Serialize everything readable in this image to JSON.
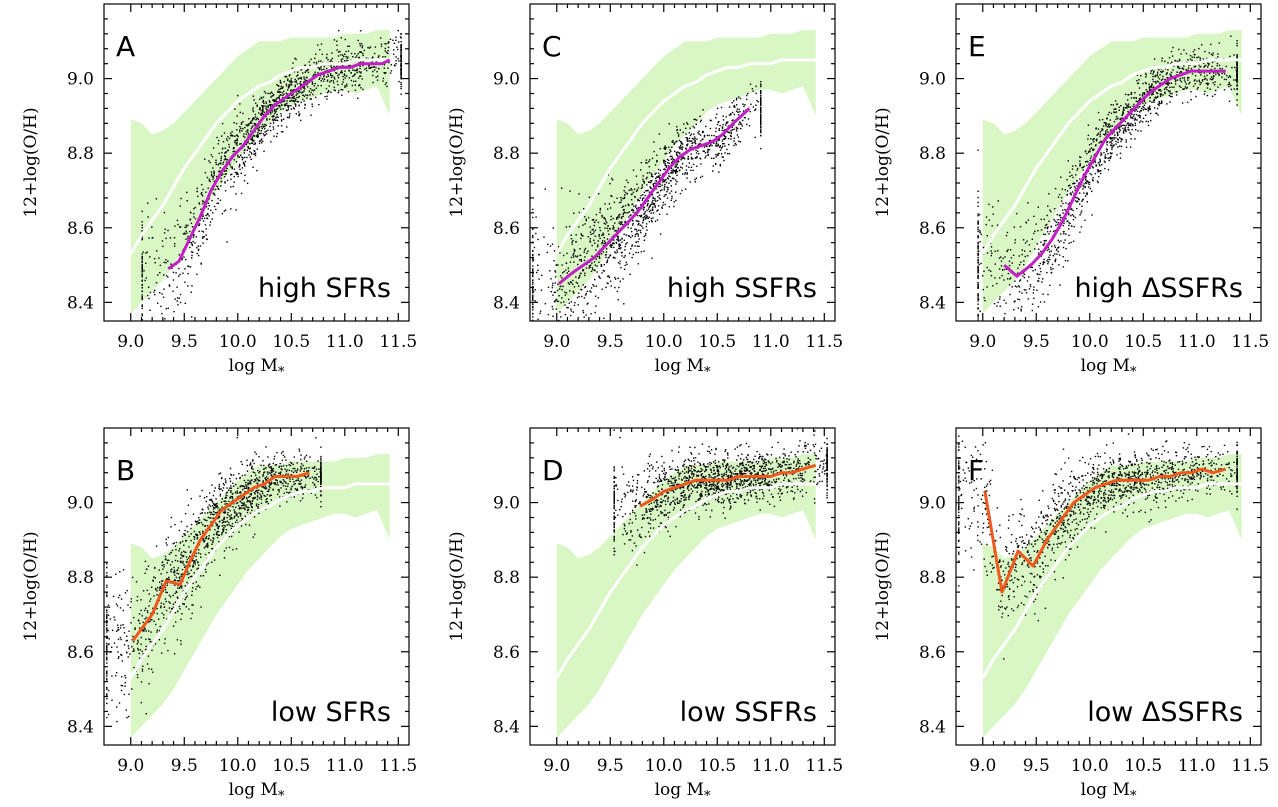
{
  "figure": {
    "colors": {
      "band": "#d9f7c4",
      "median": "#ffffff",
      "high_line": "#c21fc7",
      "low_line": "#f0591e",
      "points": "#000000"
    },
    "xlim": [
      8.75,
      11.6
    ],
    "ylim": [
      8.35,
      9.2
    ],
    "x_ticks": [
      "9.0",
      "9.5",
      "10.0",
      "10.5",
      "11.0",
      "11.5"
    ],
    "y_ticks": [
      "8.4",
      "8.6",
      "8.8",
      "9.0"
    ],
    "xlabel": "log M",
    "xlabel_sub": "*",
    "ylabel": "12+log(O/H)"
  },
  "chart_data": [
    {
      "type": "scatter",
      "panel": "A",
      "label": "high SFRs",
      "line_color": "#c21fc7",
      "series": [
        {
          "x": [
            9.35,
            9.45,
            9.55,
            9.65,
            9.75,
            9.85,
            9.95,
            10.05,
            10.15,
            10.25,
            10.35,
            10.45,
            10.55,
            10.65,
            10.75,
            10.85,
            10.95,
            11.05,
            11.15,
            11.25,
            11.35,
            11.42
          ],
          "values": [
            8.49,
            8.51,
            8.57,
            8.63,
            8.7,
            8.75,
            8.79,
            8.82,
            8.86,
            8.9,
            8.93,
            8.95,
            8.97,
            8.99,
            9.01,
            9.02,
            9.03,
            9.03,
            9.04,
            9.04,
            9.04,
            9.05
          ]
        }
      ]
    },
    {
      "type": "scatter",
      "panel": "B",
      "label": "low SFRs",
      "line_color": "#f0591e",
      "series": [
        {
          "x": [
            9.02,
            9.2,
            9.33,
            9.46,
            9.55,
            9.65,
            9.75,
            9.85,
            9.95,
            10.05,
            10.15,
            10.25,
            10.35,
            10.45,
            10.55,
            10.67
          ],
          "values": [
            8.63,
            8.7,
            8.79,
            8.78,
            8.84,
            8.9,
            8.94,
            8.98,
            9.0,
            9.02,
            9.04,
            9.05,
            9.07,
            9.07,
            9.07,
            9.08
          ]
        }
      ]
    },
    {
      "type": "scatter",
      "panel": "C",
      "label": "high SSFRs",
      "line_color": "#c21fc7",
      "series": [
        {
          "x": [
            9.02,
            9.15,
            9.25,
            9.35,
            9.45,
            9.55,
            9.65,
            9.75,
            9.85,
            9.95,
            10.05,
            10.15,
            10.25,
            10.35,
            10.45,
            10.55,
            10.65,
            10.8
          ],
          "values": [
            8.45,
            8.48,
            8.5,
            8.52,
            8.55,
            8.58,
            8.61,
            8.64,
            8.68,
            8.72,
            8.76,
            8.79,
            8.81,
            8.82,
            8.83,
            8.85,
            8.88,
            8.92
          ]
        }
      ]
    },
    {
      "type": "scatter",
      "panel": "D",
      "label": "low SSFRs",
      "line_color": "#f0591e",
      "series": [
        {
          "x": [
            9.78,
            9.9,
            10.0,
            10.1,
            10.2,
            10.3,
            10.4,
            10.5,
            10.6,
            10.7,
            10.8,
            10.9,
            11.0,
            11.1,
            11.2,
            11.3,
            11.42
          ],
          "values": [
            8.99,
            9.01,
            9.03,
            9.04,
            9.05,
            9.06,
            9.06,
            9.06,
            9.06,
            9.07,
            9.07,
            9.07,
            9.07,
            9.08,
            9.08,
            9.09,
            9.1
          ]
        }
      ]
    },
    {
      "type": "scatter",
      "panel": "E",
      "label": "high ΔSSFRs",
      "line_color": "#c21fc7",
      "series": [
        {
          "x": [
            9.2,
            9.32,
            9.45,
            9.55,
            9.65,
            9.75,
            9.85,
            9.95,
            10.05,
            10.15,
            10.25,
            10.35,
            10.45,
            10.55,
            10.65,
            10.75,
            10.85,
            10.95,
            11.05,
            11.15,
            11.27
          ],
          "values": [
            8.5,
            8.47,
            8.5,
            8.53,
            8.57,
            8.62,
            8.68,
            8.74,
            8.79,
            8.84,
            8.87,
            8.9,
            8.93,
            8.96,
            8.98,
            9.0,
            9.01,
            9.02,
            9.02,
            9.02,
            9.02
          ]
        }
      ]
    },
    {
      "type": "scatter",
      "panel": "F",
      "label": "low ΔSSFRs",
      "line_color": "#f0591e",
      "series": [
        {
          "x": [
            9.02,
            9.18,
            9.33,
            9.47,
            9.6,
            9.75,
            9.85,
            9.95,
            10.05,
            10.15,
            10.25,
            10.35,
            10.45,
            10.55,
            10.65,
            10.75,
            10.85,
            10.95,
            11.05,
            11.15,
            11.27
          ],
          "values": [
            9.03,
            8.76,
            8.87,
            8.83,
            8.9,
            8.96,
            9.0,
            9.02,
            9.04,
            9.05,
            9.06,
            9.06,
            9.06,
            9.06,
            9.07,
            9.07,
            9.08,
            9.08,
            9.09,
            9.08,
            9.09
          ]
        }
      ]
    }
  ],
  "reference": {
    "median": {
      "x": [
        9.0,
        9.1,
        9.2,
        9.3,
        9.4,
        9.5,
        9.6,
        9.7,
        9.8,
        9.9,
        10.0,
        10.1,
        10.2,
        10.3,
        10.4,
        10.5,
        10.6,
        10.7,
        10.8,
        10.9,
        11.0,
        11.1,
        11.2,
        11.3,
        11.42
      ],
      "values": [
        8.53,
        8.58,
        8.62,
        8.66,
        8.71,
        8.76,
        8.8,
        8.84,
        8.88,
        8.91,
        8.94,
        8.96,
        8.98,
        8.99,
        9.01,
        9.02,
        9.03,
        9.03,
        9.04,
        9.04,
        9.04,
        9.05,
        9.05,
        9.05,
        9.05
      ]
    },
    "band": {
      "x": [
        9.0,
        9.1,
        9.2,
        9.3,
        9.4,
        9.5,
        9.6,
        9.7,
        9.8,
        9.9,
        10.0,
        10.1,
        10.2,
        10.3,
        10.4,
        10.5,
        10.6,
        10.7,
        10.8,
        10.9,
        11.0,
        11.1,
        11.2,
        11.3,
        11.42
      ],
      "upper": [
        8.89,
        8.88,
        8.85,
        8.86,
        8.88,
        8.91,
        8.94,
        8.97,
        9.0,
        9.03,
        9.06,
        9.08,
        9.1,
        9.1,
        9.1,
        9.11,
        9.11,
        9.11,
        9.11,
        9.11,
        9.12,
        9.12,
        9.12,
        9.13,
        9.13
      ],
      "lower": [
        8.37,
        8.4,
        8.43,
        8.46,
        8.5,
        8.55,
        8.6,
        8.65,
        8.7,
        8.74,
        8.78,
        8.82,
        8.85,
        8.88,
        8.91,
        8.93,
        8.94,
        8.95,
        8.96,
        8.97,
        8.97,
        8.96,
        8.97,
        8.98,
        8.9
      ]
    }
  }
}
